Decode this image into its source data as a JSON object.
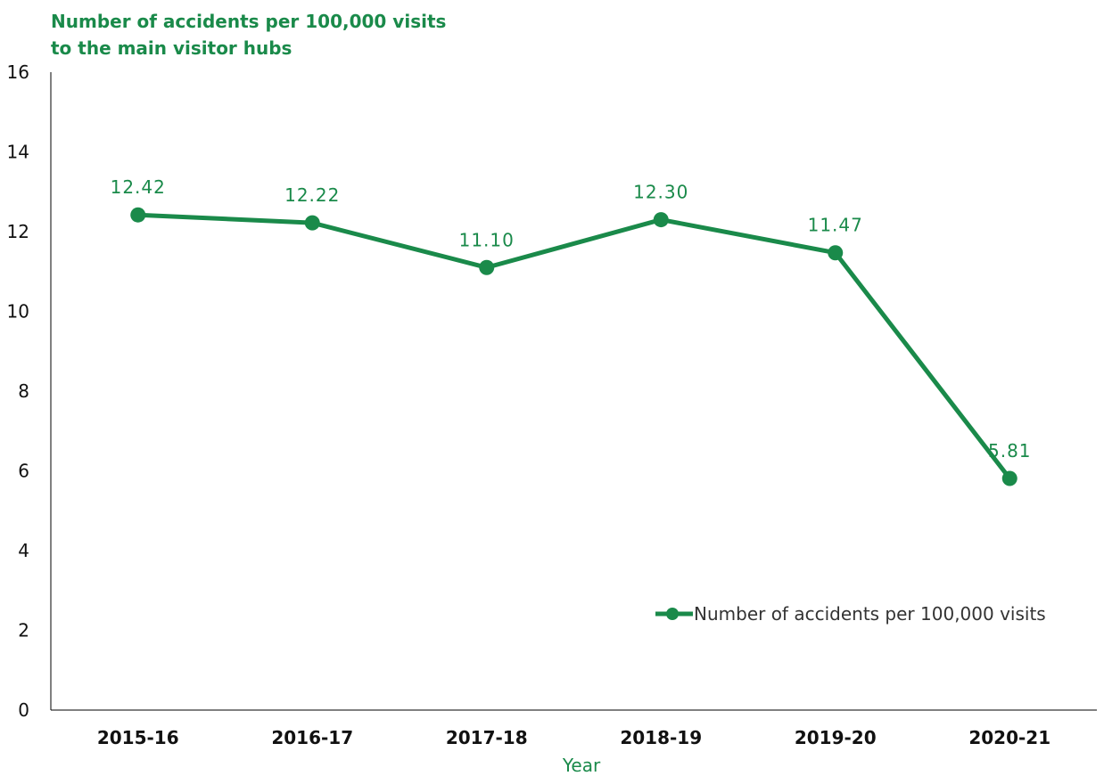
{
  "chart_data": {
    "type": "line",
    "title": "",
    "ylabel_lines": [
      "Number of accidents per 100,000 visits",
      "to the main visitor hubs"
    ],
    "xlabel": "Year",
    "categories": [
      "2015-16",
      "2016-17",
      "2017-18",
      "2018-19",
      "2019-20",
      "2020-21"
    ],
    "series": [
      {
        "name": "Number of accidents per 100,000 visits",
        "values": [
          12.42,
          12.22,
          11.1,
          12.3,
          11.47,
          5.81
        ],
        "labels": [
          "12.42",
          "12.22",
          "11.10",
          "12.30",
          "11.47",
          "5.81"
        ]
      }
    ],
    "ylim": [
      0,
      16
    ],
    "yticks": [
      "0",
      "2",
      "4",
      "6",
      "8",
      "10",
      "12",
      "14",
      "16"
    ],
    "grid": false,
    "legend_position": "bottom-right",
    "colors": {
      "series": "#1a8a4a",
      "label": "#1a8a4a",
      "axis": "#000000"
    }
  }
}
